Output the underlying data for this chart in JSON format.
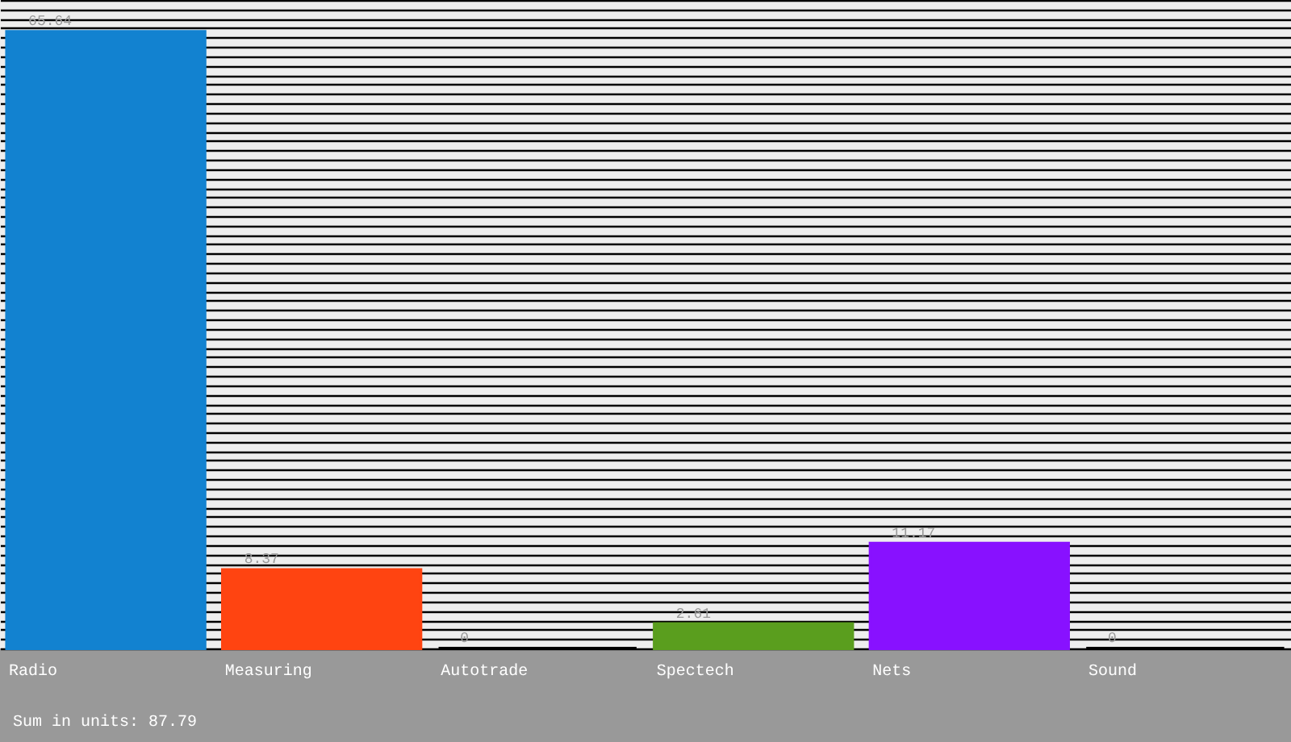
{
  "chart_data": {
    "type": "bar",
    "categories": [
      "Radio",
      "Measuring",
      "Autotrade",
      "Spectech",
      "Nets",
      "Sound"
    ],
    "values": [
      65.64,
      8.37,
      0,
      2.61,
      11.17,
      0
    ],
    "colors": [
      "#1282d0",
      "#ff4411",
      "#000000",
      "#5a9e1e",
      "#8811ff",
      "#000000"
    ],
    "data_labels": true,
    "ylim": [
      0,
      69
    ],
    "tick_labels": "x",
    "grid": "y",
    "annotations": [
      "Sum in units: 87.79"
    ]
  }
}
